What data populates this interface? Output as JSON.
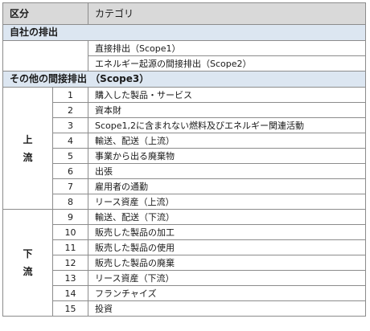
{
  "header": {
    "kubun": "区分",
    "category": "カテゴリ"
  },
  "own_section": {
    "title": "自社の排出",
    "items": [
      "直接排出（Scope1）",
      "エネルギー起源の間接排出（Scope2）"
    ]
  },
  "scope3_section": {
    "title": "その他の間接排出 （Scope3）"
  },
  "upstream": {
    "label_chars": [
      "上",
      "流"
    ],
    "items": [
      {
        "no": "1",
        "name": "購入した製品・サービス"
      },
      {
        "no": "2",
        "name": "資本財"
      },
      {
        "no": "3",
        "name": "Scope1,2に含まれない燃料及びエネルギー関連活動"
      },
      {
        "no": "4",
        "name": "輸送、配送（上流）"
      },
      {
        "no": "5",
        "name": "事業から出る廃棄物"
      },
      {
        "no": "6",
        "name": "出張"
      },
      {
        "no": "7",
        "name": "雇用者の通勤"
      },
      {
        "no": "8",
        "name": "リース資産（上流）"
      }
    ]
  },
  "downstream": {
    "label_chars": [
      "下",
      "流"
    ],
    "items": [
      {
        "no": "9",
        "name": "輸送、配送（下流）"
      },
      {
        "no": "10",
        "name": "販売した製品の加工"
      },
      {
        "no": "11",
        "name": "販売した製品の使用"
      },
      {
        "no": "12",
        "name": "販売した製品の廃棄"
      },
      {
        "no": "13",
        "name": "リース資産（下流）"
      },
      {
        "no": "14",
        "name": "フランチャイズ"
      },
      {
        "no": "15",
        "name": "投資"
      }
    ]
  }
}
